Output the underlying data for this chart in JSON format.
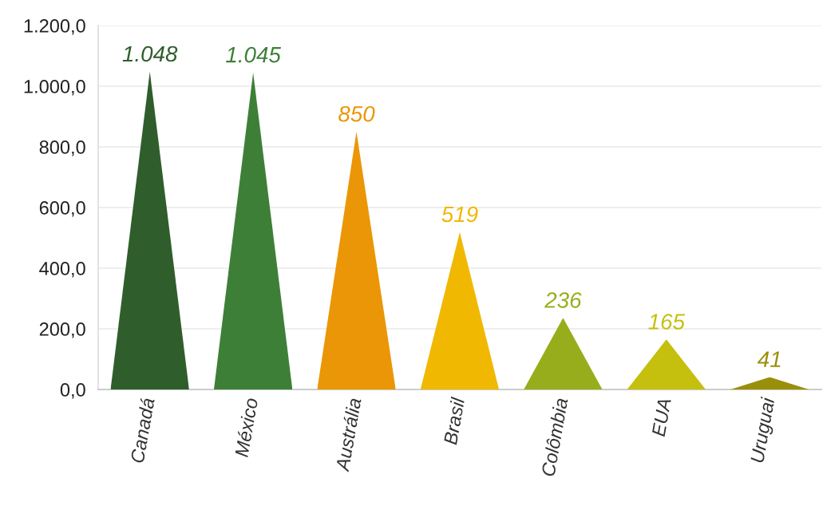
{
  "chart_data": {
    "type": "bar",
    "categories": [
      "Canadá",
      "México",
      "Austrália",
      "Brasil",
      "Colômbia",
      "EUA",
      "Uruguai"
    ],
    "values": [
      1048,
      1045,
      850,
      519,
      236,
      165,
      41
    ],
    "colors": [
      "#2f5e2c",
      "#3e7f38",
      "#ea9606",
      "#f0b800",
      "#98ad1b",
      "#c5bf0d",
      "#9a8f0a"
    ],
    "value_labels": [
      "1.048",
      "1.045",
      "850",
      "519",
      "236",
      "165",
      "41"
    ],
    "ylim": [
      0,
      1200
    ],
    "yticks": [
      {
        "value": 0,
        "label": "0,0"
      },
      {
        "value": 200,
        "label": "200,0"
      },
      {
        "value": 400,
        "label": "400,0"
      },
      {
        "value": 600,
        "label": "600,0"
      },
      {
        "value": 800,
        "label": "800,0"
      },
      {
        "value": 1000,
        "label": "1.000,0"
      },
      {
        "value": 1200,
        "label": "1.200,0"
      }
    ],
    "grid": "y"
  }
}
